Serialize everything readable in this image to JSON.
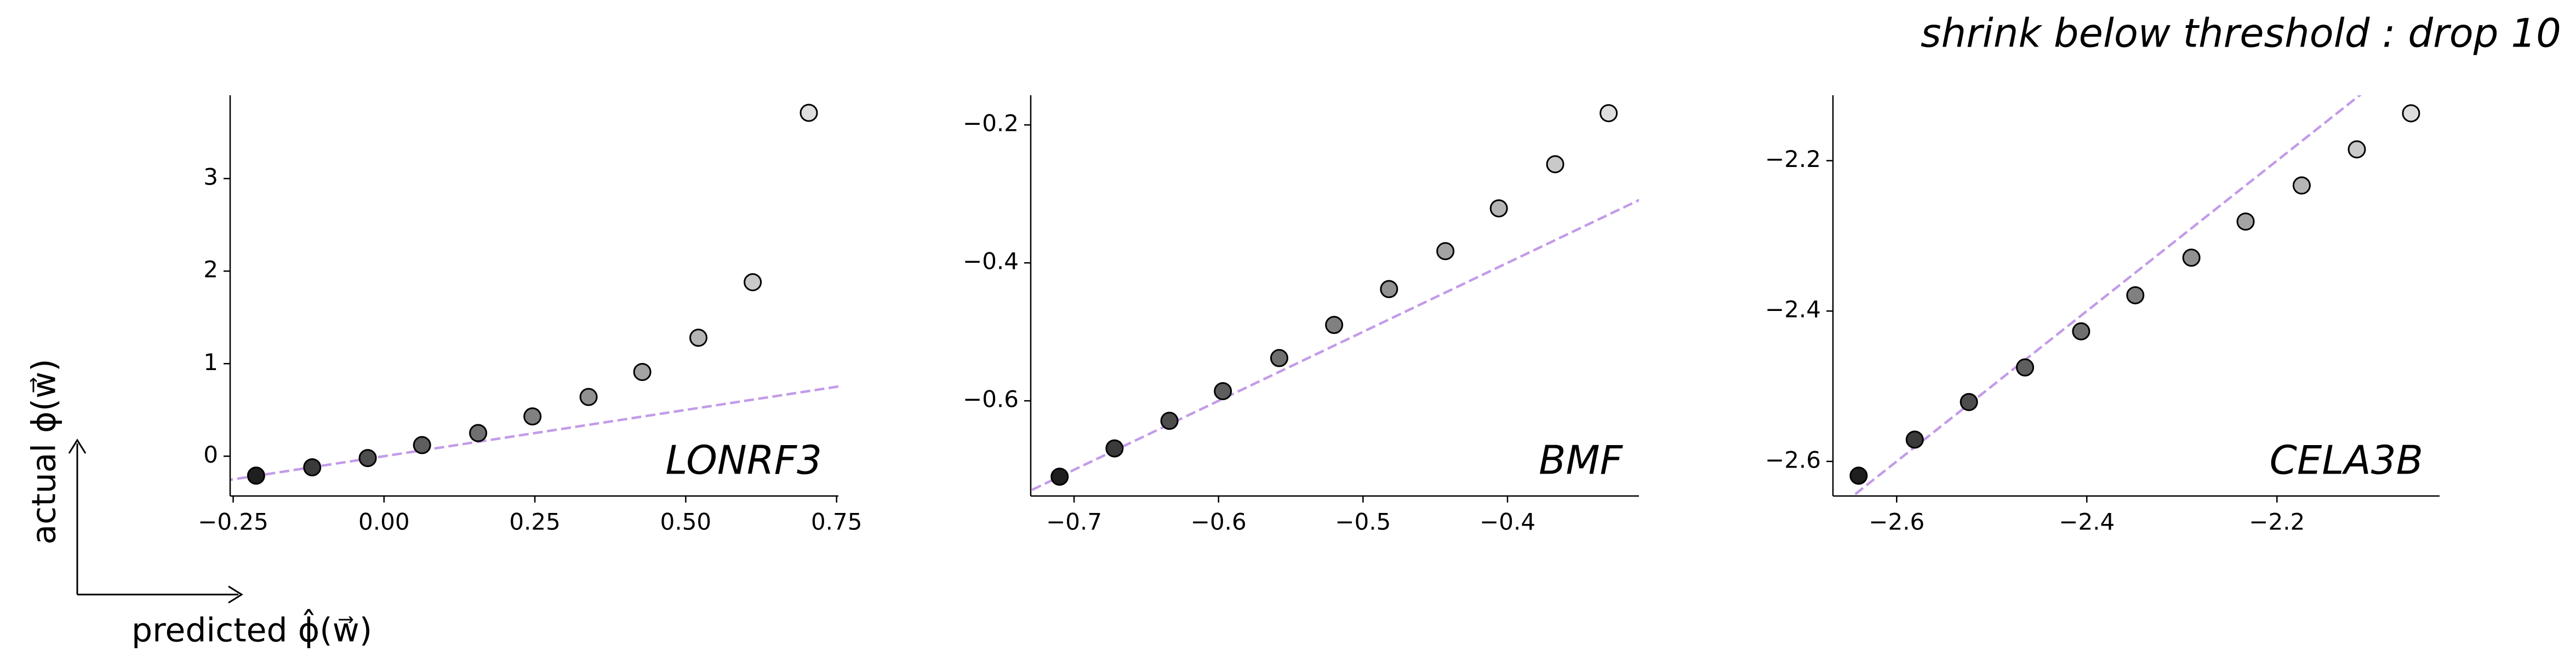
{
  "figure": {
    "title": "shrink below threshold : drop 10",
    "xlabel": "predicted  ϕ̂(w⃗)",
    "ylabel": "actual  ϕ(w⃗)"
  },
  "chart_data": [
    {
      "type": "scatter",
      "label": "LONRF3",
      "reference_line": "identity",
      "reference_line_color": "#c39be8",
      "x": [
        -0.212,
        -0.119,
        -0.027,
        0.063,
        0.156,
        0.246,
        0.339,
        0.428,
        0.521,
        0.611,
        0.704
      ],
      "values": [
        -0.21,
        -0.12,
        -0.02,
        0.12,
        0.25,
        0.43,
        0.64,
        0.91,
        1.28,
        1.88,
        3.71
      ],
      "colors": [
        "#1f1f1f",
        "#3a3a3a",
        "#4d4d4d",
        "#5e5e5e",
        "#6f6f6f",
        "#808080",
        "#919191",
        "#a3a3a3",
        "#b5b5b5",
        "#c9c9c9",
        "#dedede"
      ],
      "xlim": [
        -0.255,
        0.753
      ],
      "ylim": [
        -0.43,
        3.9
      ],
      "xticks": [
        {
          "value": -0.25,
          "label": "−0.25"
        },
        {
          "value": 0,
          "label": "0.00"
        },
        0.25,
        {
          "value": 0.5,
          "label": "0.50"
        },
        0.75
      ],
      "yticks": [
        0,
        1,
        2,
        3
      ]
    },
    {
      "type": "scatter",
      "label": "BMF",
      "reference_line": "identity",
      "reference_line_color": "#c39be8",
      "x": [
        -0.71,
        -0.672,
        -0.634,
        -0.597,
        -0.558,
        -0.52,
        -0.482,
        -0.443,
        -0.406,
        -0.367,
        -0.33
      ],
      "values": [
        -0.71,
        -0.669,
        -0.629,
        -0.586,
        -0.538,
        -0.49,
        -0.438,
        -0.383,
        -0.321,
        -0.257,
        -0.183
      ],
      "colors": [
        "#1f1f1f",
        "#3a3a3a",
        "#4d4d4d",
        "#5e5e5e",
        "#6f6f6f",
        "#808080",
        "#919191",
        "#a3a3a3",
        "#b5b5b5",
        "#c9c9c9",
        "#dedede"
      ],
      "xlim": [
        -0.73,
        -0.309
      ],
      "ylim": [
        -0.738,
        -0.157
      ],
      "xticks": [
        {
          "value": -0.7,
          "label": "−0.7"
        },
        {
          "value": -0.6,
          "label": "−0.6"
        },
        {
          "value": -0.5,
          "label": "−0.5"
        },
        {
          "value": -0.4,
          "label": "−0.4"
        }
      ],
      "yticks": [
        {
          "value": -0.6,
          "label": "−0.6"
        },
        {
          "value": -0.4,
          "label": "−0.4"
        },
        {
          "value": -0.2,
          "label": "−0.2"
        }
      ]
    },
    {
      "type": "scatter",
      "label": "CELA3B",
      "reference_line": "identity",
      "reference_line_color": "#c39be8",
      "x": [
        -2.64,
        -2.581,
        -2.524,
        -2.465,
        -2.406,
        -2.349,
        -2.29,
        -2.233,
        -2.174,
        -2.116,
        -2.059
      ],
      "values": [
        -2.619,
        -2.571,
        -2.521,
        -2.475,
        -2.427,
        -2.379,
        -2.329,
        -2.281,
        -2.233,
        -2.185,
        -2.137
      ],
      "colors": [
        "#1f1f1f",
        "#3a3a3a",
        "#4d4d4d",
        "#5e5e5e",
        "#6f6f6f",
        "#808080",
        "#919191",
        "#a3a3a3",
        "#b5b5b5",
        "#c9c9c9",
        "#dedede"
      ],
      "xlim": [
        -2.667,
        -2.029
      ],
      "ylim": [
        -2.646,
        -2.113
      ],
      "xticks": [
        {
          "value": -2.6,
          "label": "−2.6"
        },
        {
          "value": -2.4,
          "label": "−2.4"
        },
        {
          "value": -2.2,
          "label": "−2.2"
        }
      ],
      "yticks": [
        {
          "value": -2.6,
          "label": "−2.6"
        },
        {
          "value": -2.4,
          "label": "−2.4"
        },
        {
          "value": -2.2,
          "label": "−2.2"
        }
      ]
    }
  ]
}
